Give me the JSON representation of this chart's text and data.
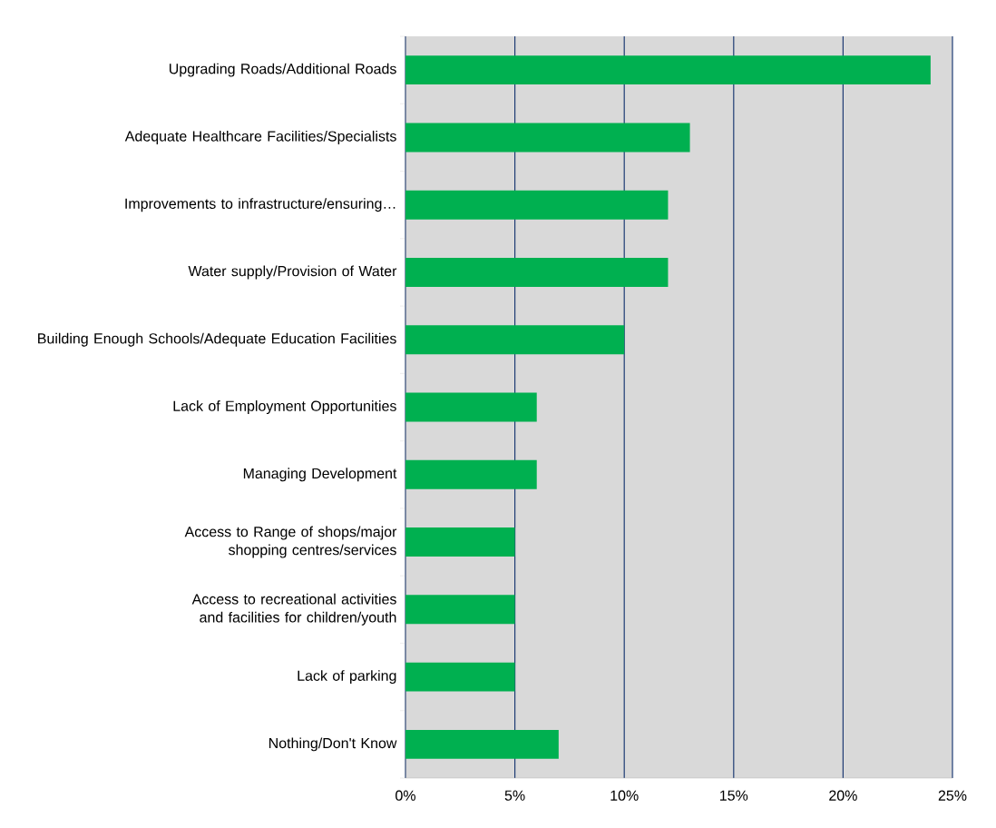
{
  "chart_data": {
    "type": "bar",
    "orientation": "horizontal",
    "categories": [
      "Upgrading Roads/Additional Roads",
      "Adequate Healthcare Facilities/Specialists",
      "Improvements to infrastructure/ensuring…",
      "Water supply/Provision of Water",
      "Building Enough Schools/Adequate Education Facilities",
      "Lack of Employment Opportunities",
      "Managing Development",
      "Access to Range of shops/major shopping centres/services",
      "Access to recreational activities and facilities for children/youth",
      "Lack of parking",
      "Nothing/Don't Know"
    ],
    "values": [
      24,
      13,
      12,
      12,
      10,
      6,
      6,
      5,
      5,
      5,
      7
    ],
    "color": "#00b050",
    "xlim": [
      0,
      25
    ],
    "xticks": [
      {
        "value": 0,
        "label": "0%"
      },
      {
        "value": 5,
        "label": "5%"
      },
      {
        "value": 10,
        "label": "10%"
      },
      {
        "value": 15,
        "label": "15%"
      },
      {
        "value": 20,
        "label": "20%"
      },
      {
        "value": 25,
        "label": "25%"
      }
    ],
    "grid": "x"
  }
}
